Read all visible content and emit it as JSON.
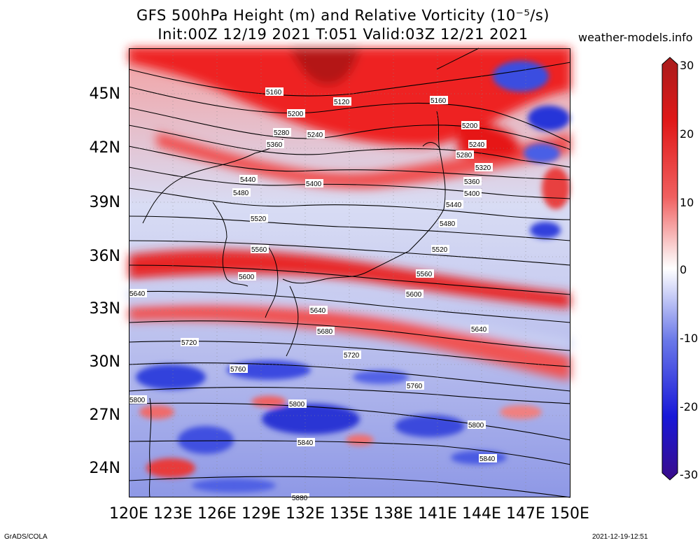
{
  "title": {
    "line1": "GFS 500hPa Height (m) and Relative Vorticity (10⁻⁵/s)",
    "line2": "Init:00Z 12/19 2021 T:051 Valid:03Z 12/21 2021"
  },
  "site": "weather-models.info",
  "axes": {
    "lat_labels": [
      "45N",
      "42N",
      "39N",
      "36N",
      "33N",
      "30N",
      "27N",
      "24N"
    ],
    "lon_labels": [
      "120E",
      "123E",
      "126E",
      "129E",
      "132E",
      "135E",
      "138E",
      "141E",
      "144E",
      "147E",
      "150E"
    ]
  },
  "colorbar": {
    "labels": [
      "30",
      "20",
      "10",
      "0",
      "-10",
      "-20",
      "-30"
    ]
  },
  "contour_labels": [
    "5160",
    "5120",
    "5160",
    "5200",
    "5200",
    "5280",
    "5240",
    "5240",
    "5360",
    "5280",
    "5320",
    "5440",
    "5400",
    "5360",
    "5400",
    "5480",
    "5440",
    "5520",
    "5480",
    "5560",
    "5520",
    "5600",
    "5560",
    "5600",
    "5640",
    "5640",
    "5640",
    "5680",
    "5720",
    "5720",
    "5760",
    "5760",
    "5800",
    "5800",
    "5840",
    "5840",
    "5800",
    "5880"
  ],
  "footer": {
    "left": "GrADS/COLA",
    "right": "2021-12-19-12:51"
  }
}
